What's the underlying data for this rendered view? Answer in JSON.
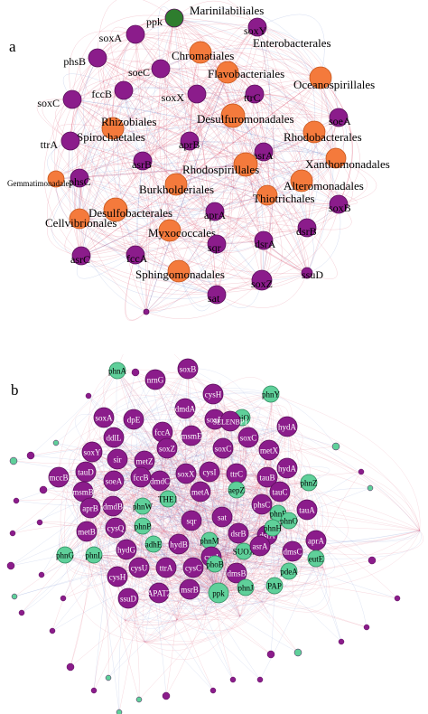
{
  "colors": {
    "gene": "#8b1c8b",
    "gene_stroke": "#5a0f5a",
    "taxon": "#f47a3c",
    "taxon_stroke": "#c6561c",
    "ppk_a": "#2e7d2e",
    "gene_b_light": "#5fd09a",
    "edge_red": "#d63a5a",
    "edge_blue": "#5a78c8"
  },
  "panel_a": {
    "letter": "a",
    "nodes": [
      {
        "id": "ppk",
        "cls": "ppk"
      },
      {
        "id": "Marinilabiliales",
        "cls": "taxon"
      },
      {
        "id": "soxA",
        "cls": "gene"
      },
      {
        "id": "soxY",
        "cls": "gene"
      },
      {
        "id": "phsB",
        "cls": "gene"
      },
      {
        "id": "Chromatiales",
        "cls": "taxon"
      },
      {
        "id": "Enterobacterales",
        "cls": "taxon"
      },
      {
        "id": "soeC",
        "cls": "gene"
      },
      {
        "id": "Flavobacteriales",
        "cls": "taxon"
      },
      {
        "id": "Oceanospirillales",
        "cls": "taxon"
      },
      {
        "id": "fccB",
        "cls": "gene"
      },
      {
        "id": "soxX",
        "cls": "gene"
      },
      {
        "id": "ttrC",
        "cls": "gene"
      },
      {
        "id": "soxC",
        "cls": "gene"
      },
      {
        "id": "Rhizobiales",
        "cls": "taxon"
      },
      {
        "id": "Desulfuromonadales",
        "cls": "taxon"
      },
      {
        "id": "soeA",
        "cls": "gene"
      },
      {
        "id": "Spirochaetales",
        "cls": "taxon"
      },
      {
        "id": "Rhodobacterales",
        "cls": "taxon"
      },
      {
        "id": "ttrA",
        "cls": "gene"
      },
      {
        "id": "aprB",
        "cls": "gene"
      },
      {
        "id": "asrA",
        "cls": "gene"
      },
      {
        "id": "asrB",
        "cls": "gene"
      },
      {
        "id": "Xanthomonadales",
        "cls": "taxon"
      },
      {
        "id": "Rhodospirillales",
        "cls": "taxon"
      },
      {
        "id": "phsC",
        "cls": "gene"
      },
      {
        "id": "Gemmatimonadales",
        "cls": "taxon"
      },
      {
        "id": "Alteromonadales",
        "cls": "taxon"
      },
      {
        "id": "Burkholderiales",
        "cls": "taxon"
      },
      {
        "id": "Thiotrichales",
        "cls": "taxon"
      },
      {
        "id": "soxB",
        "cls": "gene"
      },
      {
        "id": "Desulfobacterales",
        "cls": "taxon"
      },
      {
        "id": "aprA",
        "cls": "gene"
      },
      {
        "id": "Cellvibrionales",
        "cls": "taxon"
      },
      {
        "id": "Myxococcales",
        "cls": "taxon"
      },
      {
        "id": "dsrB",
        "cls": "gene"
      },
      {
        "id": "asrC",
        "cls": "gene"
      },
      {
        "id": "fccA",
        "cls": "gene"
      },
      {
        "id": "dsrA",
        "cls": "gene"
      },
      {
        "id": "sqr",
        "cls": "gene"
      },
      {
        "id": "Sphingomonadales",
        "cls": "taxon"
      },
      {
        "id": "soxZ",
        "cls": "gene"
      },
      {
        "id": "sat",
        "cls": "gene"
      },
      {
        "id": "ssuD",
        "cls": "gene"
      },
      {
        "id": "",
        "cls": "gene"
      }
    ]
  },
  "panel_b": {
    "letter": "b",
    "nodes": [
      "phnA",
      "nrnG",
      "soxB",
      "cysH",
      "dmdA",
      "soxB",
      "phnY",
      "thiO",
      "soxA",
      "dpE",
      "fccA",
      "SELENBP1",
      "soxC",
      "hydA",
      "ddlL",
      "msmE",
      "soxY",
      "sir",
      "metZ",
      "soxZ",
      "fccB",
      "soxC",
      "metX",
      "tauD",
      "mccB",
      "msmB",
      "soeA",
      "dmdC",
      "soxX",
      "cysI",
      "ttrC",
      "tauB",
      "hydA",
      "phnZ",
      "aprB",
      "dmdB",
      "phnW",
      "THE1",
      "metA",
      "aepZ",
      "phsC",
      "tauC",
      "tauA",
      "phnF",
      "sqr",
      "sat",
      "dsrB",
      "dsrA",
      "phnO",
      "metB",
      "cysQ",
      "phnP",
      "hydB",
      "phnM",
      "SUOX",
      "phnH",
      "phnG",
      "phnL",
      "hydG",
      "adhE",
      "cysJ",
      "asrA",
      "aprA",
      "dmsC",
      "eutE",
      "pdeA",
      "cysH",
      "cysU",
      "ttrA",
      "cysC",
      "phoB",
      "dmsB",
      "phnJ",
      "PAP",
      "ssuD",
      "APAT2",
      "msrB",
      "ppk"
    ]
  }
}
